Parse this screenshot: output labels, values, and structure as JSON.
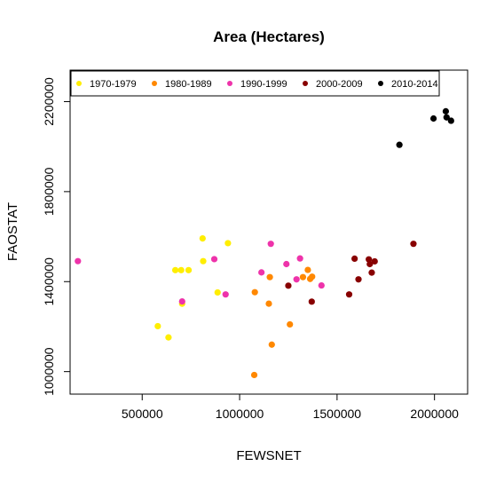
{
  "chart_data": {
    "type": "scatter",
    "title": "Area (Hectares)",
    "xlabel": "FEWSNET",
    "ylabel": "FAOSTAT",
    "xlim": [
      130000,
      2170000
    ],
    "ylim": [
      900000,
      2340000
    ],
    "xticks": [
      500000,
      1000000,
      1500000,
      2000000
    ],
    "xtick_labels": [
      "500000",
      "1000000",
      "1500000",
      "2000000"
    ],
    "yticks": [
      1000000,
      1400000,
      1800000,
      2200000
    ],
    "ytick_labels": [
      "1000000",
      "1400000",
      "1800000",
      "2200000"
    ],
    "grid": false,
    "legend_position": "top",
    "series": [
      {
        "name": "1970-1979",
        "color": "#ffee00",
        "points": [
          [
            580000,
            1202000
          ],
          [
            635000,
            1152000
          ],
          [
            670000,
            1451000
          ],
          [
            700000,
            1451000
          ],
          [
            705000,
            1302000
          ],
          [
            738000,
            1451000
          ],
          [
            810000,
            1592000
          ],
          [
            813000,
            1491000
          ],
          [
            887000,
            1352000
          ],
          [
            940000,
            1571000
          ]
        ]
      },
      {
        "name": "1980-1989",
        "color": "#ff8800",
        "points": [
          [
            1075000,
            985000
          ],
          [
            1078000,
            1353000
          ],
          [
            1150000,
            1302000
          ],
          [
            1155000,
            1420000
          ],
          [
            1165000,
            1120000
          ],
          [
            1258000,
            1210000
          ],
          [
            1325000,
            1420000
          ],
          [
            1350000,
            1452000
          ],
          [
            1362000,
            1412000
          ],
          [
            1372000,
            1422000
          ]
        ]
      },
      {
        "name": "1990-1999",
        "color": "#ee33aa",
        "points": [
          [
            170000,
            1491000
          ],
          [
            705000,
            1312000
          ],
          [
            870000,
            1500000
          ],
          [
            928000,
            1343000
          ],
          [
            1112000,
            1441000
          ],
          [
            1160000,
            1568000
          ],
          [
            1240000,
            1478000
          ],
          [
            1292000,
            1410000
          ],
          [
            1310000,
            1503000
          ],
          [
            1420000,
            1383000
          ]
        ]
      },
      {
        "name": "2000-2009",
        "color": "#880000",
        "points": [
          [
            1250000,
            1382000
          ],
          [
            1370000,
            1311000
          ],
          [
            1562000,
            1343000
          ],
          [
            1590000,
            1502000
          ],
          [
            1610000,
            1410000
          ],
          [
            1663000,
            1499000
          ],
          [
            1668000,
            1478000
          ],
          [
            1678000,
            1440000
          ],
          [
            1693000,
            1490000
          ],
          [
            1892000,
            1568000
          ]
        ]
      },
      {
        "name": "2010-2014",
        "color": "#000000",
        "points": [
          [
            1820000,
            2008000
          ],
          [
            1995000,
            2125000
          ],
          [
            2058000,
            2157000
          ],
          [
            2062000,
            2130000
          ],
          [
            2085000,
            2115000
          ]
        ]
      }
    ]
  }
}
